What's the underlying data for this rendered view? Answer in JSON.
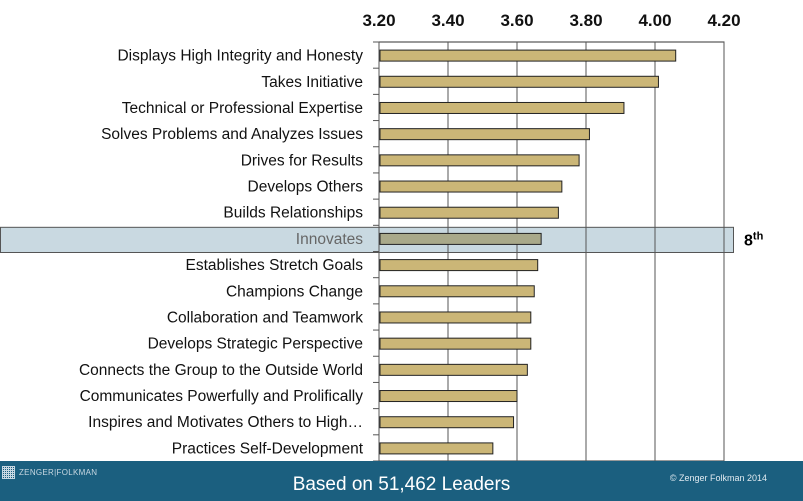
{
  "chart_data": {
    "type": "bar",
    "orientation": "horizontal",
    "categories": [
      "Displays High Integrity and Honesty",
      "Takes Initiative",
      "Technical or Professional Expertise",
      "Solves Problems and Analyzes Issues",
      "Drives for Results",
      "Develops Others",
      "Builds Relationships",
      "Innovates",
      "Establishes Stretch Goals",
      "Champions Change",
      "Collaboration and Teamwork",
      "Develops Strategic Perspective",
      "Connects the Group to the Outside World",
      "Communicates Powerfully and Prolifically",
      "Inspires and Motivates Others to High…",
      "Practices Self-Development"
    ],
    "values": [
      4.06,
      4.01,
      3.91,
      3.81,
      3.78,
      3.73,
      3.72,
      3.67,
      3.66,
      3.65,
      3.64,
      3.64,
      3.63,
      3.6,
      3.59,
      3.53
    ],
    "xlim": [
      3.2,
      4.2
    ],
    "xticks": [
      "3.20",
      "3.40",
      "3.60",
      "3.80",
      "4.00",
      "4.20"
    ],
    "axis_position": "top",
    "grid": true,
    "highlight": {
      "category": "Innovates",
      "rank": "8",
      "rank_suffix": "th"
    },
    "colors": {
      "bar": "#cbb677",
      "highlight_bar": "#a9a98a",
      "highlight_band": "#c9d9e1",
      "footer": "#1b5f7f"
    }
  },
  "footer": {
    "logo_text": "ZENGER|FOLKMAN",
    "title": "Based on 51,462 Leaders",
    "copyright": "© Zenger Folkman 2014"
  }
}
